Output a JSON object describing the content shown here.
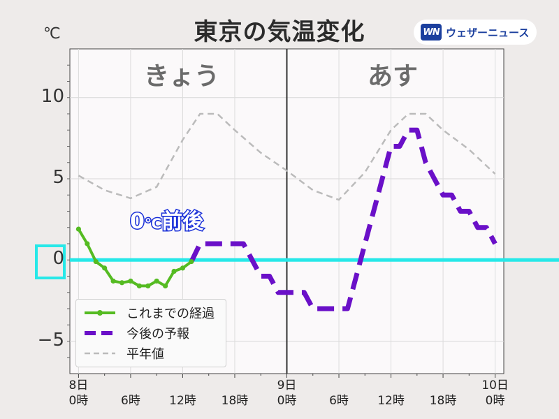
{
  "title": "東京の気温変化",
  "unit": "℃",
  "brand": "ウェザーニュース",
  "brand_mark": "WN",
  "day_labels": [
    "きょう",
    "あす"
  ],
  "annotation": {
    "value": "0",
    "deg": "℃",
    "text": "前後"
  },
  "colors": {
    "observed": "#55bb22",
    "forecast": "#6a10c8",
    "normal": "#bbbbbb",
    "zero_line": "#27e8e8",
    "plot_bg": "#fbf9fa",
    "grid": "#e3e3e3"
  },
  "chart_data": {
    "type": "line",
    "title": "東京の気温変化",
    "ylabel": "℃",
    "ylim": [
      -7,
      13
    ],
    "xlim": [
      -1,
      49
    ],
    "yticks": [
      {
        "v": 10,
        "label": "10"
      },
      {
        "v": 5,
        "label": "5"
      },
      {
        "v": 0,
        "label": "0"
      },
      {
        "v": -5,
        "label": "−5"
      }
    ],
    "xticks": [
      {
        "v": 0,
        "label": "8日\n0時"
      },
      {
        "v": 6,
        "label": "6時"
      },
      {
        "v": 12,
        "label": "12時"
      },
      {
        "v": 18,
        "label": "18時"
      },
      {
        "v": 24,
        "label": "9日\n0時"
      },
      {
        "v": 30,
        "label": "6時"
      },
      {
        "v": 36,
        "label": "12時"
      },
      {
        "v": 42,
        "label": "18時"
      },
      {
        "v": 48,
        "label": "10日\n0時"
      }
    ],
    "day_divider_x": 24,
    "zero_line": 0,
    "series": [
      {
        "name": "これまでの経過",
        "style": "observed",
        "x": [
          0,
          1,
          2,
          3,
          4,
          5,
          6,
          7,
          8,
          9,
          10,
          11,
          12,
          13
        ],
        "y": [
          1.9,
          1.0,
          -0.1,
          -0.5,
          -1.3,
          -1.4,
          -1.3,
          -1.6,
          -1.6,
          -1.3,
          -1.6,
          -0.7,
          -0.5,
          -0.1
        ]
      },
      {
        "name": "今後の予報",
        "style": "forecast",
        "x": [
          13,
          14,
          15,
          16,
          17,
          18,
          19,
          20,
          21,
          22,
          23,
          24,
          25,
          26,
          27,
          28,
          29,
          30,
          31,
          32,
          33,
          34,
          35,
          36,
          37,
          38,
          39,
          40,
          41,
          42,
          43,
          44,
          45,
          46,
          47,
          48
        ],
        "y": [
          -0.1,
          1.0,
          1.0,
          1.0,
          1.0,
          1.0,
          1.0,
          0.0,
          -1.0,
          -1.0,
          -2.0,
          -2.0,
          -2.0,
          -2.0,
          -3.0,
          -3.0,
          -3.0,
          -3.0,
          -3.0,
          -1.0,
          1.0,
          3.0,
          5.0,
          7.0,
          7.0,
          8.0,
          8.0,
          6.0,
          5.0,
          4.0,
          4.0,
          3.0,
          3.0,
          2.0,
          2.0,
          1.0
        ]
      },
      {
        "name": "平年値",
        "style": "normal",
        "x": [
          0,
          3,
          6,
          9,
          12,
          14,
          16,
          18,
          21,
          24,
          27,
          30,
          33,
          36,
          38,
          40,
          42,
          45,
          48
        ],
        "y": [
          5.2,
          4.3,
          3.8,
          4.5,
          7.4,
          9.0,
          9.0,
          8.0,
          6.6,
          5.5,
          4.3,
          3.7,
          5.4,
          8.0,
          9.0,
          9.0,
          8.0,
          6.8,
          5.3
        ]
      }
    ]
  }
}
